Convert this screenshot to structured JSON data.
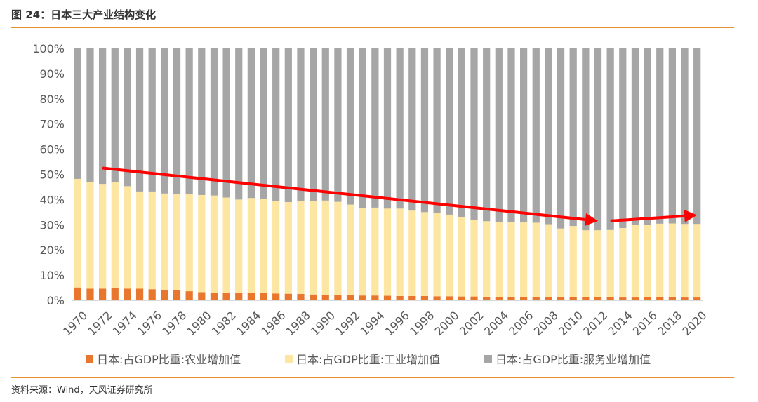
{
  "header": {
    "title": "图 24：日本三大产业结构变化"
  },
  "footer": {
    "source": "资料来源：Wind，天风证券研究所"
  },
  "chart_data": {
    "type": "bar",
    "stacked": true,
    "categories": [
      "1970",
      "1971",
      "1972",
      "1973",
      "1974",
      "1975",
      "1976",
      "1977",
      "1978",
      "1979",
      "1980",
      "1981",
      "1982",
      "1983",
      "1984",
      "1985",
      "1986",
      "1987",
      "1988",
      "1989",
      "1990",
      "1991",
      "1992",
      "1993",
      "1994",
      "1995",
      "1996",
      "1997",
      "1998",
      "1999",
      "2000",
      "2001",
      "2002",
      "2003",
      "2004",
      "2005",
      "2006",
      "2007",
      "2008",
      "2009",
      "2010",
      "2011",
      "2012",
      "2013",
      "2014",
      "2015",
      "2016",
      "2017",
      "2018",
      "2019",
      "2020"
    ],
    "series": [
      {
        "name": "日本:占GDP比重:农业增加值",
        "color": "#e8762d",
        "values": [
          5.1,
          4.6,
          4.6,
          5.0,
          4.6,
          4.6,
          4.4,
          4.2,
          4.0,
          3.6,
          3.2,
          3.0,
          3.0,
          2.8,
          2.8,
          2.8,
          2.7,
          2.6,
          2.5,
          2.3,
          2.2,
          2.1,
          2.0,
          1.9,
          1.9,
          1.8,
          1.7,
          1.7,
          1.7,
          1.6,
          1.6,
          1.5,
          1.5,
          1.4,
          1.3,
          1.3,
          1.2,
          1.2,
          1.2,
          1.2,
          1.2,
          1.2,
          1.2,
          1.2,
          1.1,
          1.1,
          1.2,
          1.2,
          1.2,
          1.1,
          1.1
        ]
      },
      {
        "name": "日本:占GDP比重:工业增加值",
        "color": "#fde6a2",
        "values": [
          43.1,
          42.4,
          41.6,
          41.8,
          40.7,
          38.6,
          38.8,
          38.2,
          38.2,
          38.6,
          38.6,
          38.6,
          37.8,
          37.2,
          37.8,
          37.6,
          36.8,
          36.4,
          36.8,
          37.2,
          37.4,
          37.0,
          36.0,
          34.8,
          34.9,
          34.6,
          34.7,
          33.9,
          33.3,
          33.2,
          32.4,
          31.6,
          30.3,
          30.0,
          29.9,
          29.7,
          29.7,
          29.6,
          29.0,
          27.3,
          28.3,
          26.6,
          26.6,
          26.7,
          27.6,
          28.8,
          28.8,
          29.2,
          29.3,
          29.2,
          29.2
        ]
      },
      {
        "name": "日本:占GDP比重:服务业增加值",
        "color": "#a6a6a6",
        "values": [
          51.8,
          53.0,
          53.8,
          53.2,
          54.7,
          56.8,
          56.8,
          57.6,
          57.8,
          57.8,
          58.2,
          58.4,
          59.2,
          60.0,
          59.4,
          59.6,
          60.5,
          61.0,
          60.7,
          60.5,
          60.4,
          60.9,
          62.0,
          63.3,
          63.2,
          63.6,
          63.6,
          64.4,
          65.0,
          65.2,
          66.0,
          66.9,
          68.2,
          68.6,
          68.8,
          69.0,
          69.1,
          69.2,
          69.8,
          71.5,
          70.5,
          72.2,
          72.2,
          72.1,
          71.3,
          70.1,
          70.0,
          69.6,
          69.5,
          69.7,
          69.7
        ]
      }
    ],
    "y_tick_labels": [
      "0%",
      "10%",
      "20%",
      "30%",
      "40%",
      "50%",
      "60%",
      "70%",
      "80%",
      "90%",
      "100%"
    ],
    "ylim": [
      0,
      100
    ],
    "grid": false,
    "legend": "bottom",
    "annotations": [
      {
        "type": "arrow",
        "color": "#ff0000",
        "from": {
          "x": "1972",
          "y": 52.5
        },
        "to": {
          "x": "2012",
          "y": 31.5
        }
      },
      {
        "type": "arrow",
        "color": "#ff0000",
        "from": {
          "x": "2013",
          "y": 31.5
        },
        "to": {
          "x": "2020",
          "y": 33.8
        }
      }
    ]
  }
}
